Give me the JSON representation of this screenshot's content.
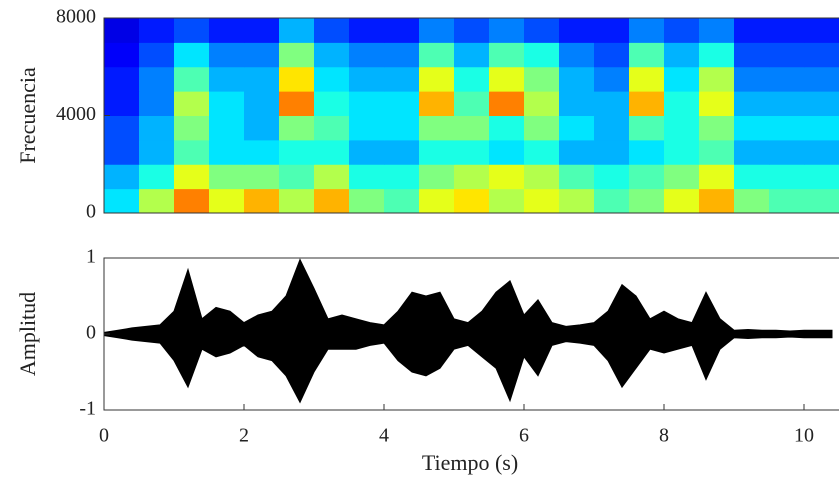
{
  "chart_data": [
    {
      "type": "heatmap",
      "ylabel": "Frecuencia",
      "x": [
        0.25,
        0.75,
        1.25,
        1.75,
        2.25,
        2.75,
        3.25,
        3.75,
        4.25,
        4.75,
        5.25,
        5.75,
        6.25,
        6.75,
        7.25,
        7.75,
        8.25,
        8.75,
        9.25,
        9.75,
        10.25
      ],
      "y": [
        500,
        1500,
        2500,
        3500,
        4500,
        5500,
        6500,
        7500
      ],
      "z": [
        [
          0.35,
          0.55,
          0.75,
          0.6,
          0.7,
          0.55,
          0.7,
          0.5,
          0.45,
          0.6,
          0.65,
          0.55,
          0.6,
          0.55,
          0.45,
          0.5,
          0.6,
          0.7,
          0.5,
          0.45,
          0.45
        ],
        [
          0.3,
          0.4,
          0.6,
          0.5,
          0.5,
          0.45,
          0.55,
          0.4,
          0.4,
          0.5,
          0.55,
          0.6,
          0.55,
          0.45,
          0.4,
          0.45,
          0.5,
          0.6,
          0.4,
          0.4,
          0.4
        ],
        [
          0.2,
          0.3,
          0.45,
          0.35,
          0.35,
          0.4,
          0.4,
          0.3,
          0.3,
          0.4,
          0.4,
          0.35,
          0.4,
          0.3,
          0.3,
          0.35,
          0.4,
          0.45,
          0.3,
          0.3,
          0.3
        ],
        [
          0.2,
          0.3,
          0.5,
          0.35,
          0.3,
          0.5,
          0.45,
          0.35,
          0.35,
          0.5,
          0.5,
          0.4,
          0.5,
          0.35,
          0.3,
          0.45,
          0.4,
          0.5,
          0.35,
          0.35,
          0.35
        ],
        [
          0.15,
          0.25,
          0.55,
          0.35,
          0.3,
          0.75,
          0.4,
          0.35,
          0.35,
          0.7,
          0.45,
          0.75,
          0.55,
          0.3,
          0.3,
          0.7,
          0.4,
          0.6,
          0.3,
          0.3,
          0.3
        ],
        [
          0.15,
          0.25,
          0.45,
          0.3,
          0.3,
          0.65,
          0.35,
          0.3,
          0.3,
          0.6,
          0.4,
          0.6,
          0.5,
          0.3,
          0.25,
          0.6,
          0.35,
          0.55,
          0.25,
          0.25,
          0.25
        ],
        [
          0.12,
          0.2,
          0.35,
          0.25,
          0.25,
          0.5,
          0.3,
          0.25,
          0.25,
          0.45,
          0.3,
          0.45,
          0.4,
          0.25,
          0.2,
          0.45,
          0.3,
          0.4,
          0.2,
          0.2,
          0.2
        ],
        [
          0.1,
          0.15,
          0.2,
          0.15,
          0.15,
          0.3,
          0.2,
          0.15,
          0.15,
          0.25,
          0.2,
          0.25,
          0.2,
          0.15,
          0.15,
          0.25,
          0.2,
          0.25,
          0.15,
          0.15,
          0.15
        ]
      ],
      "xlim": [
        0,
        10.5
      ],
      "ylim": [
        0,
        8000
      ],
      "yticks": [
        0,
        4000,
        8000
      ]
    },
    {
      "type": "line",
      "xlabel": "Tiempo (s)",
      "ylabel": "Amplitud",
      "color": "#000000",
      "x": [
        0,
        0.2,
        0.4,
        0.6,
        0.8,
        1.0,
        1.2,
        1.4,
        1.6,
        1.8,
        2.0,
        2.2,
        2.4,
        2.6,
        2.8,
        3.0,
        3.2,
        3.4,
        3.6,
        3.8,
        4.0,
        4.2,
        4.4,
        4.6,
        4.8,
        5.0,
        5.2,
        5.4,
        5.6,
        5.8,
        6.0,
        6.2,
        6.4,
        6.6,
        6.8,
        7.0,
        7.2,
        7.4,
        7.6,
        7.8,
        8.0,
        8.2,
        8.4,
        8.6,
        8.8,
        9.0,
        9.2,
        9.4,
        9.6,
        9.8,
        10.0,
        10.2,
        10.4
      ],
      "series": [
        {
          "values": [
            0.02,
            0.05,
            0.08,
            0.1,
            0.12,
            0.3,
            0.85,
            0.2,
            0.35,
            0.3,
            0.15,
            0.25,
            0.3,
            0.5,
            0.98,
            0.6,
            0.2,
            0.25,
            0.2,
            0.15,
            0.12,
            0.3,
            0.55,
            0.5,
            0.55,
            0.2,
            0.15,
            0.3,
            0.55,
            0.7,
            0.25,
            0.45,
            0.15,
            0.1,
            0.12,
            0.15,
            0.3,
            0.65,
            0.5,
            0.2,
            0.3,
            0.2,
            0.15,
            0.55,
            0.2,
            0.05,
            0.06,
            0.05,
            0.05,
            0.04,
            0.05,
            0.05,
            0.05
          ]
        },
        {
          "values": [
            -0.02,
            -0.05,
            -0.08,
            -0.1,
            -0.12,
            -0.35,
            -0.7,
            -0.2,
            -0.3,
            -0.25,
            -0.15,
            -0.3,
            -0.35,
            -0.55,
            -0.9,
            -0.5,
            -0.2,
            -0.2,
            -0.2,
            -0.15,
            -0.12,
            -0.35,
            -0.5,
            -0.55,
            -0.45,
            -0.2,
            -0.15,
            -0.3,
            -0.45,
            -0.88,
            -0.3,
            -0.55,
            -0.15,
            -0.1,
            -0.12,
            -0.15,
            -0.35,
            -0.7,
            -0.45,
            -0.2,
            -0.25,
            -0.2,
            -0.15,
            -0.6,
            -0.2,
            -0.05,
            -0.06,
            -0.05,
            -0.05,
            -0.04,
            -0.05,
            -0.05,
            -0.05
          ]
        }
      ],
      "xlim": [
        0,
        10.5
      ],
      "ylim": [
        -1,
        1
      ],
      "xticks": [
        0,
        2,
        4,
        6,
        8,
        10
      ],
      "yticks": [
        -1,
        0,
        1
      ]
    }
  ]
}
